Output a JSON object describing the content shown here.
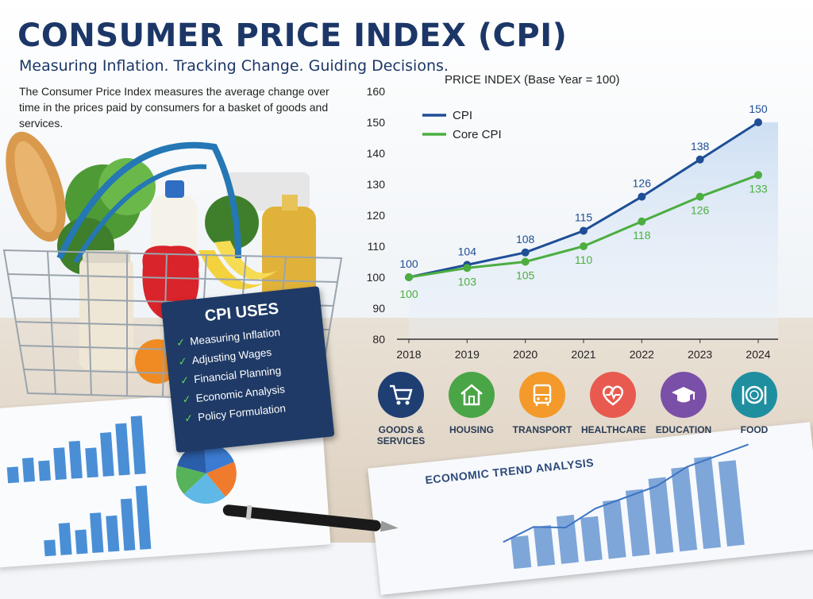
{
  "header": {
    "title": "CONSUMER PRICE INDEX (CPI)",
    "subtitle": "Measuring Inflation. Tracking Change. Guiding Decisions.",
    "description": "The Consumer Price Index measures the average change over time in the prices paid by consumers for a basket of goods and services."
  },
  "uses_card": {
    "title": "CPI USES",
    "items": [
      "Measuring Inflation",
      "Adjusting Wages",
      "Financial Planning",
      "Economic Analysis",
      "Policy Formulation"
    ]
  },
  "chart_data": {
    "type": "line",
    "title": "PRICE INDEX (Base Year = 100)",
    "x": [
      "2018",
      "2019",
      "2020",
      "2021",
      "2022",
      "2023",
      "2024"
    ],
    "ylim": [
      80,
      160
    ],
    "yticks": [
      80,
      90,
      100,
      110,
      120,
      130,
      140,
      150,
      160
    ],
    "grid": false,
    "legend_position": "top-left",
    "series": [
      {
        "name": "CPI",
        "values": [
          100,
          104,
          108,
          115,
          126,
          138,
          150
        ],
        "color": "#1f4e96"
      },
      {
        "name": "Core CPI",
        "values": [
          100,
          103,
          105,
          110,
          118,
          126,
          133
        ],
        "color": "#4bae3f"
      }
    ]
  },
  "categories": [
    {
      "label": "GOODS & SERVICES",
      "line1": "GOODS &",
      "line2": "SERVICES",
      "icon": "shopping-cart-icon",
      "color": "#1f3f73"
    },
    {
      "label": "HOUSING",
      "line1": "HOUSING",
      "line2": "",
      "icon": "house-icon",
      "color": "#4aa546"
    },
    {
      "label": "TRANSPORT",
      "line1": "TRANSPORT",
      "line2": "",
      "icon": "bus-icon",
      "color": "#f39a2a"
    },
    {
      "label": "HEALTHCARE",
      "line1": "HEALTHCARE",
      "line2": "",
      "icon": "heart-pulse-icon",
      "color": "#e85a4f"
    },
    {
      "label": "EDUCATION",
      "line1": "EDUCATION",
      "line2": "",
      "icon": "graduation-cap-icon",
      "color": "#7a4fa8"
    },
    {
      "label": "FOOD",
      "line1": "FOOD",
      "line2": "",
      "icon": "plate-cutlery-icon",
      "color": "#1f8fa0"
    }
  ],
  "notebook": {
    "title": "ECONOMIC TREND ANALYSIS"
  }
}
